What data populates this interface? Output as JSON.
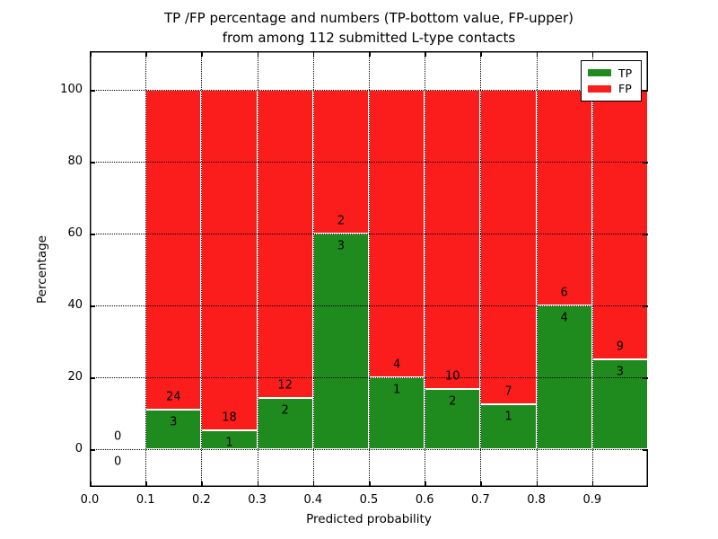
{
  "title": {
    "line1": "TP /FP percentage and numbers (TP-bottom value, FP-upper)",
    "line2": "from among 112 submitted L-type contacts"
  },
  "ylabel": "Percentage",
  "xlabel": "Predicted probability",
  "legend": {
    "items": [
      {
        "label": "TP",
        "color": "#1f8b1f"
      },
      {
        "label": "FP",
        "color": "#fb1c1c"
      }
    ]
  },
  "colors": {
    "tp_green": "#1f8b1f",
    "fp_red": "#fb1c1c",
    "spine": "#000000",
    "background": "#ffffff"
  },
  "ticks": {
    "x_labels": [
      "0.0",
      "0.1",
      "0.2",
      "0.3",
      "0.4",
      "0.5",
      "0.6",
      "0.7",
      "0.8",
      "0.9"
    ],
    "y_labels": [
      "0",
      "20",
      "40",
      "60",
      "80",
      "100"
    ]
  },
  "chart_data": {
    "type": "bar",
    "stacked": true,
    "title": "TP /FP percentage and numbers (TP-bottom value, FP-upper) from among 112 submitted L-type contacts",
    "xlabel": "Predicted probability",
    "ylabel": "Percentage",
    "xlim": [
      0.0,
      1.0
    ],
    "ylim": [
      -10.5,
      110.75
    ],
    "xticks": [
      0.0,
      0.1,
      0.2,
      0.3,
      0.4,
      0.5,
      0.6,
      0.7,
      0.8,
      0.9,
      1.0
    ],
    "yticks": [
      0,
      20,
      40,
      60,
      80,
      100
    ],
    "grid": true,
    "grid_style": "dotted",
    "bin_width": 0.1,
    "bin_starts": [
      0.0,
      0.1,
      0.2,
      0.3,
      0.4,
      0.5,
      0.6,
      0.7,
      0.8,
      0.9
    ],
    "total_contacts": 112,
    "series": [
      {
        "name": "TP",
        "color": "#1f8b1f",
        "counts": [
          0,
          3,
          1,
          2,
          3,
          1,
          2,
          1,
          4,
          3
        ],
        "percent": [
          0,
          11.111,
          5.263,
          14.286,
          60.0,
          20.0,
          16.667,
          12.5,
          40.0,
          25.0
        ]
      },
      {
        "name": "FP",
        "color": "#fb1c1c",
        "counts": [
          0,
          24,
          18,
          12,
          2,
          4,
          10,
          7,
          6,
          9
        ],
        "percent": [
          0,
          88.889,
          94.737,
          85.714,
          40.0,
          80.0,
          83.333,
          87.5,
          60.0,
          75.0
        ]
      }
    ],
    "annotations_note": "TP count shown just below stack boundary, FP count just above it; first bin shows 0 and 0 around the zero line",
    "legend_position": "upper right"
  }
}
